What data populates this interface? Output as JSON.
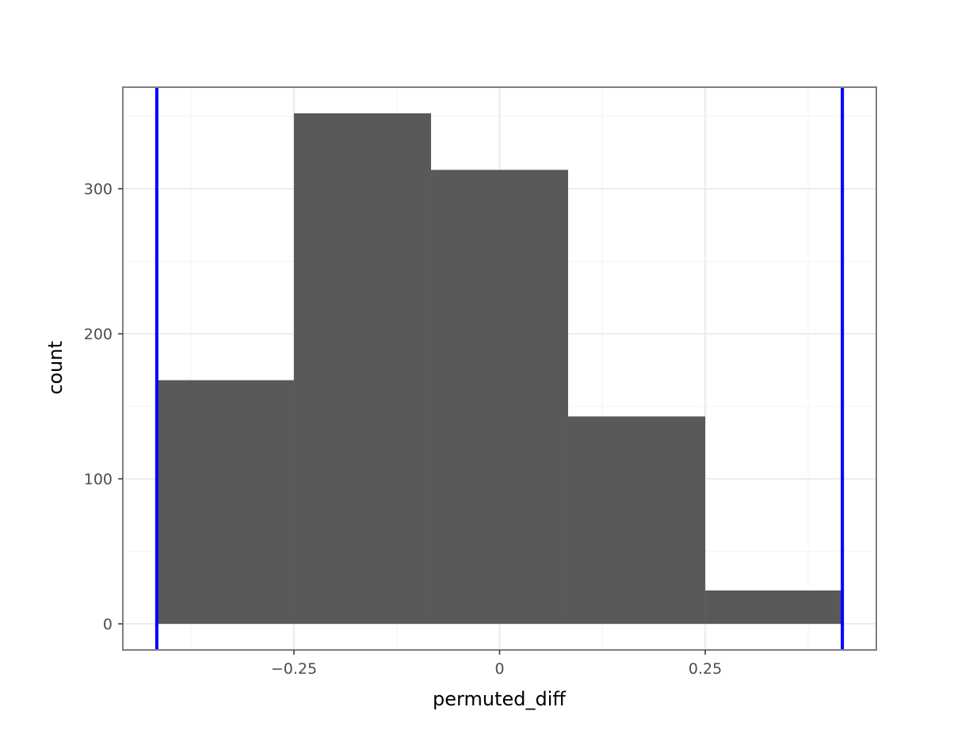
{
  "chart_data": {
    "type": "bar",
    "subtype": "histogram",
    "xlabel": "permuted_diff",
    "ylabel": "count",
    "bins": [
      {
        "x0": -0.4167,
        "x1": -0.25,
        "count": 168
      },
      {
        "x0": -0.25,
        "x1": -0.0833,
        "count": 352
      },
      {
        "x0": -0.0833,
        "x1": 0.0833,
        "count": 313
      },
      {
        "x0": 0.0833,
        "x1": 0.25,
        "count": 143
      },
      {
        "x0": 0.25,
        "x1": 0.4167,
        "count": 23
      }
    ],
    "vlines": [
      -0.4167,
      0.4167
    ],
    "xlim": [
      -0.458,
      0.458
    ],
    "ylim": [
      -18,
      370
    ],
    "x_major_ticks": [
      -0.25,
      0,
      0.25
    ],
    "x_tick_labels": [
      "−0.25",
      "0",
      "0.25"
    ],
    "x_minor_ticks": [
      -0.375,
      -0.125,
      0.125,
      0.375
    ],
    "y_major_ticks": [
      0,
      100,
      200,
      300
    ],
    "y_tick_labels": [
      "0",
      "100",
      "200",
      "300"
    ],
    "y_minor_ticks": [
      50,
      150,
      250,
      350
    ],
    "grid": true,
    "colors": {
      "bar_fill": "#595959",
      "vline": "#0000ff",
      "panel_border": "#7f7f7f",
      "grid_major": "#ebebeb",
      "grid_minor": "#f5f5f5",
      "tick_mark": "#333333"
    }
  }
}
